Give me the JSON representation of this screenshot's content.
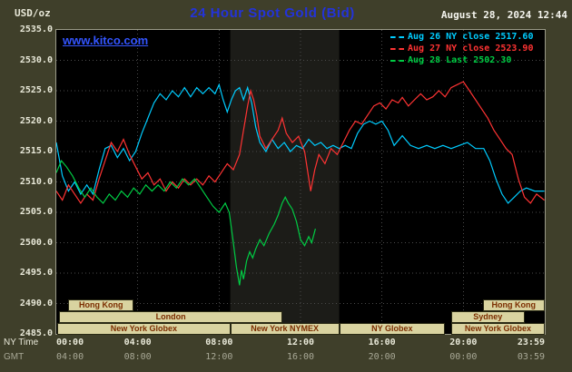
{
  "header": {
    "unit_label": "USD/oz",
    "title": "24 Hour Spot Gold (Bid)",
    "datetime": "August 28, 2024 12:44",
    "watermark": "www.kitco.com"
  },
  "axes": {
    "ny_row_label": "NY Time",
    "gmt_row_label": "GMT",
    "y_ticks": [
      "2535.0",
      "2530.0",
      "2525.0",
      "2520.0",
      "2515.0",
      "2510.0",
      "2505.0",
      "2500.0",
      "2495.0",
      "2490.0",
      "2485.0"
    ],
    "x_ticks": [
      {
        "ny": "00:00",
        "gmt": "04:00",
        "h": 0
      },
      {
        "ny": "04:00",
        "gmt": "08:00",
        "h": 4
      },
      {
        "ny": "08:00",
        "gmt": "12:00",
        "h": 8
      },
      {
        "ny": "12:00",
        "gmt": "16:00",
        "h": 12
      },
      {
        "ny": "16:00",
        "gmt": "20:00",
        "h": 16
      },
      {
        "ny": "20:00",
        "gmt": "00:00",
        "h": 20
      },
      {
        "ny": "23:59",
        "gmt": "03:59",
        "h": 24
      }
    ]
  },
  "sessions": [
    {
      "row": 0,
      "label": "Hong Kong",
      "start": 0.6,
      "end": 3.8
    },
    {
      "row": 0,
      "label": "Hong Kong",
      "start": 20.95,
      "end": 24
    },
    {
      "row": 1,
      "label": "London",
      "start": 0.15,
      "end": 11.1
    },
    {
      "row": 1,
      "label": "Sydney",
      "start": 19.4,
      "end": 23.0
    },
    {
      "row": 2,
      "label": "New York Globex",
      "start": 0.05,
      "end": 8.55
    },
    {
      "row": 2,
      "label": "New York NYMEX",
      "start": 8.55,
      "end": 13.9
    },
    {
      "row": 2,
      "label": "NY Globex",
      "start": 13.9,
      "end": 19.1
    },
    {
      "row": 2,
      "label": "New York Globex",
      "start": 19.4,
      "end": 24
    }
  ],
  "colors": {
    "background": "#3f3f2a",
    "plot_bg": "#000000",
    "plot_border": "#9a9a88",
    "band": "#1c1c18",
    "grid": "#4a4a4a",
    "title": "#2333d9",
    "link": "#3355ff",
    "axis_text": "#e8e8d8",
    "axis_text_dim": "#a8a896",
    "session_fill": "#d9d3a0",
    "session_text": "#7b2d00"
  },
  "chart_data": {
    "type": "line",
    "title": "24 Hour Spot Gold (Bid)",
    "xlabel": "NY Time (hours)",
    "ylabel": "USD/oz",
    "xlim": [
      0,
      24
    ],
    "ylim": [
      2485,
      2535
    ],
    "y_step": 5,
    "x_step_hours": 4,
    "grid": true,
    "legend_position": "top-right",
    "nymex_band_hours": [
      8.55,
      13.9
    ],
    "series": [
      {
        "name": "Aug 26",
        "legend": "Aug 26 NY close 2517.60",
        "close": 2517.6,
        "color": "#00ccff",
        "points": [
          [
            0,
            2516.5
          ],
          [
            0.3,
            2511
          ],
          [
            0.6,
            2508.5
          ],
          [
            0.9,
            2510
          ],
          [
            1.2,
            2508
          ],
          [
            1.5,
            2509.5
          ],
          [
            1.8,
            2508
          ],
          [
            2.1,
            2512
          ],
          [
            2.4,
            2515.5
          ],
          [
            2.7,
            2516
          ],
          [
            3.0,
            2514
          ],
          [
            3.3,
            2515.5
          ],
          [
            3.6,
            2513.5
          ],
          [
            3.9,
            2515
          ],
          [
            4.2,
            2518
          ],
          [
            4.5,
            2520.5
          ],
          [
            4.8,
            2523
          ],
          [
            5.1,
            2524.5
          ],
          [
            5.4,
            2523.5
          ],
          [
            5.7,
            2525
          ],
          [
            6.0,
            2524
          ],
          [
            6.3,
            2525.5
          ],
          [
            6.6,
            2524
          ],
          [
            6.9,
            2525.5
          ],
          [
            7.2,
            2524.5
          ],
          [
            7.5,
            2525.5
          ],
          [
            7.8,
            2524.5
          ],
          [
            8.0,
            2526
          ],
          [
            8.2,
            2523.5
          ],
          [
            8.4,
            2521.5
          ],
          [
            8.6,
            2523.5
          ],
          [
            8.8,
            2525
          ],
          [
            9.0,
            2525.5
          ],
          [
            9.2,
            2523.5
          ],
          [
            9.4,
            2525.5
          ],
          [
            9.6,
            2523
          ],
          [
            9.8,
            2519
          ],
          [
            10.0,
            2516.5
          ],
          [
            10.3,
            2515
          ],
          [
            10.6,
            2517
          ],
          [
            10.9,
            2515.5
          ],
          [
            11.2,
            2516.5
          ],
          [
            11.5,
            2515
          ],
          [
            11.8,
            2516
          ],
          [
            12.1,
            2515.5
          ],
          [
            12.4,
            2517
          ],
          [
            12.7,
            2516
          ],
          [
            13.0,
            2516.5
          ],
          [
            13.3,
            2515.5
          ],
          [
            13.6,
            2516
          ],
          [
            13.9,
            2515.5
          ],
          [
            14.2,
            2516
          ],
          [
            14.5,
            2515.5
          ],
          [
            14.8,
            2518
          ],
          [
            15.1,
            2519.5
          ],
          [
            15.4,
            2520
          ],
          [
            15.7,
            2519.5
          ],
          [
            16.0,
            2520
          ],
          [
            16.3,
            2518.5
          ],
          [
            16.6,
            2516
          ],
          [
            17.0,
            2517.6
          ],
          [
            17.4,
            2516
          ],
          [
            17.8,
            2515.5
          ],
          [
            18.2,
            2516
          ],
          [
            18.6,
            2515.5
          ],
          [
            19.0,
            2516
          ],
          [
            19.4,
            2515.5
          ],
          [
            19.8,
            2516
          ],
          [
            20.2,
            2516.5
          ],
          [
            20.6,
            2515.5
          ],
          [
            21.0,
            2515.5
          ],
          [
            21.3,
            2513.5
          ],
          [
            21.6,
            2510.5
          ],
          [
            21.9,
            2508
          ],
          [
            22.2,
            2506.5
          ],
          [
            22.5,
            2507.5
          ],
          [
            22.8,
            2508.5
          ],
          [
            23.1,
            2509
          ],
          [
            23.5,
            2508.5
          ],
          [
            23.98,
            2508.5
          ]
        ]
      },
      {
        "name": "Aug 27",
        "legend": "Aug 27 NY close 2523.90",
        "close": 2523.9,
        "color": "#ff3333",
        "points": [
          [
            0,
            2508.5
          ],
          [
            0.3,
            2507
          ],
          [
            0.6,
            2509.5
          ],
          [
            0.9,
            2508
          ],
          [
            1.2,
            2506.5
          ],
          [
            1.5,
            2508
          ],
          [
            1.8,
            2507
          ],
          [
            2.1,
            2510.5
          ],
          [
            2.4,
            2513.5
          ],
          [
            2.7,
            2516.5
          ],
          [
            3.0,
            2515
          ],
          [
            3.3,
            2517
          ],
          [
            3.6,
            2514.5
          ],
          [
            3.9,
            2512.5
          ],
          [
            4.2,
            2510.5
          ],
          [
            4.5,
            2511.5
          ],
          [
            4.8,
            2509.5
          ],
          [
            5.1,
            2510.5
          ],
          [
            5.4,
            2508.5
          ],
          [
            5.7,
            2510
          ],
          [
            6.0,
            2509
          ],
          [
            6.3,
            2510.5
          ],
          [
            6.6,
            2509.5
          ],
          [
            6.9,
            2510.5
          ],
          [
            7.2,
            2509.5
          ],
          [
            7.5,
            2511
          ],
          [
            7.8,
            2510
          ],
          [
            8.1,
            2511.5
          ],
          [
            8.4,
            2513
          ],
          [
            8.7,
            2512
          ],
          [
            9.0,
            2514.5
          ],
          [
            9.2,
            2518.5
          ],
          [
            9.4,
            2522.5
          ],
          [
            9.55,
            2525
          ],
          [
            9.7,
            2523.5
          ],
          [
            9.85,
            2521
          ],
          [
            10.0,
            2517.5
          ],
          [
            10.3,
            2515.5
          ],
          [
            10.6,
            2517
          ],
          [
            10.9,
            2518.5
          ],
          [
            11.1,
            2520.5
          ],
          [
            11.3,
            2518
          ],
          [
            11.6,
            2516.5
          ],
          [
            11.9,
            2517.5
          ],
          [
            12.2,
            2515
          ],
          [
            12.5,
            2508.5
          ],
          [
            12.7,
            2512
          ],
          [
            12.9,
            2514.5
          ],
          [
            13.2,
            2513
          ],
          [
            13.5,
            2515.5
          ],
          [
            13.8,
            2514.5
          ],
          [
            14.1,
            2516.5
          ],
          [
            14.4,
            2518.5
          ],
          [
            14.7,
            2520
          ],
          [
            15.0,
            2519.5
          ],
          [
            15.3,
            2521
          ],
          [
            15.6,
            2522.5
          ],
          [
            15.9,
            2523
          ],
          [
            16.2,
            2522
          ],
          [
            16.5,
            2523.5
          ],
          [
            16.8,
            2523
          ],
          [
            17.0,
            2523.9
          ],
          [
            17.3,
            2522.5
          ],
          [
            17.6,
            2523.5
          ],
          [
            17.9,
            2524.5
          ],
          [
            18.2,
            2523.5
          ],
          [
            18.5,
            2524
          ],
          [
            18.8,
            2525
          ],
          [
            19.1,
            2524
          ],
          [
            19.4,
            2525.5
          ],
          [
            19.7,
            2526
          ],
          [
            20.0,
            2526.5
          ],
          [
            20.3,
            2525
          ],
          [
            20.6,
            2523.5
          ],
          [
            20.9,
            2522
          ],
          [
            21.2,
            2520.5
          ],
          [
            21.5,
            2518.5
          ],
          [
            21.8,
            2517
          ],
          [
            22.1,
            2515.5
          ],
          [
            22.4,
            2514.5
          ],
          [
            22.7,
            2510.5
          ],
          [
            23.0,
            2507.5
          ],
          [
            23.3,
            2506.5
          ],
          [
            23.6,
            2508
          ],
          [
            23.98,
            2507
          ]
        ]
      },
      {
        "name": "Aug 28",
        "legend": "Aug 28 Last 2502.30",
        "last": 2502.3,
        "color": "#00cc44",
        "points": [
          [
            0,
            2511.5
          ],
          [
            0.25,
            2513.5
          ],
          [
            0.5,
            2512.5
          ],
          [
            0.8,
            2511
          ],
          [
            1.1,
            2509
          ],
          [
            1.4,
            2507.5
          ],
          [
            1.7,
            2509
          ],
          [
            2.0,
            2507.5
          ],
          [
            2.3,
            2506.5
          ],
          [
            2.6,
            2508
          ],
          [
            2.9,
            2507
          ],
          [
            3.2,
            2508.5
          ],
          [
            3.5,
            2507.5
          ],
          [
            3.8,
            2509
          ],
          [
            4.1,
            2508
          ],
          [
            4.4,
            2509.5
          ],
          [
            4.7,
            2508.5
          ],
          [
            5.0,
            2509.5
          ],
          [
            5.3,
            2508.5
          ],
          [
            5.6,
            2510
          ],
          [
            5.9,
            2509
          ],
          [
            6.2,
            2510.5
          ],
          [
            6.5,
            2509.5
          ],
          [
            6.8,
            2510.5
          ],
          [
            7.1,
            2509
          ],
          [
            7.4,
            2507.5
          ],
          [
            7.7,
            2506
          ],
          [
            8.0,
            2505
          ],
          [
            8.3,
            2506.5
          ],
          [
            8.5,
            2505
          ],
          [
            8.7,
            2500
          ],
          [
            8.85,
            2496
          ],
          [
            9.0,
            2493
          ],
          [
            9.1,
            2495.5
          ],
          [
            9.2,
            2494
          ],
          [
            9.35,
            2497
          ],
          [
            9.5,
            2498.5
          ],
          [
            9.65,
            2497.5
          ],
          [
            9.8,
            2499
          ],
          [
            10.0,
            2500.5
          ],
          [
            10.2,
            2499.5
          ],
          [
            10.45,
            2501.5
          ],
          [
            10.7,
            2503
          ],
          [
            10.9,
            2504.5
          ],
          [
            11.1,
            2506.5
          ],
          [
            11.25,
            2507.5
          ],
          [
            11.4,
            2506.5
          ],
          [
            11.6,
            2505.5
          ],
          [
            11.8,
            2503.5
          ],
          [
            12.0,
            2500.5
          ],
          [
            12.2,
            2499.5
          ],
          [
            12.4,
            2501
          ],
          [
            12.55,
            2500
          ],
          [
            12.73,
            2502.3
          ]
        ]
      }
    ]
  }
}
